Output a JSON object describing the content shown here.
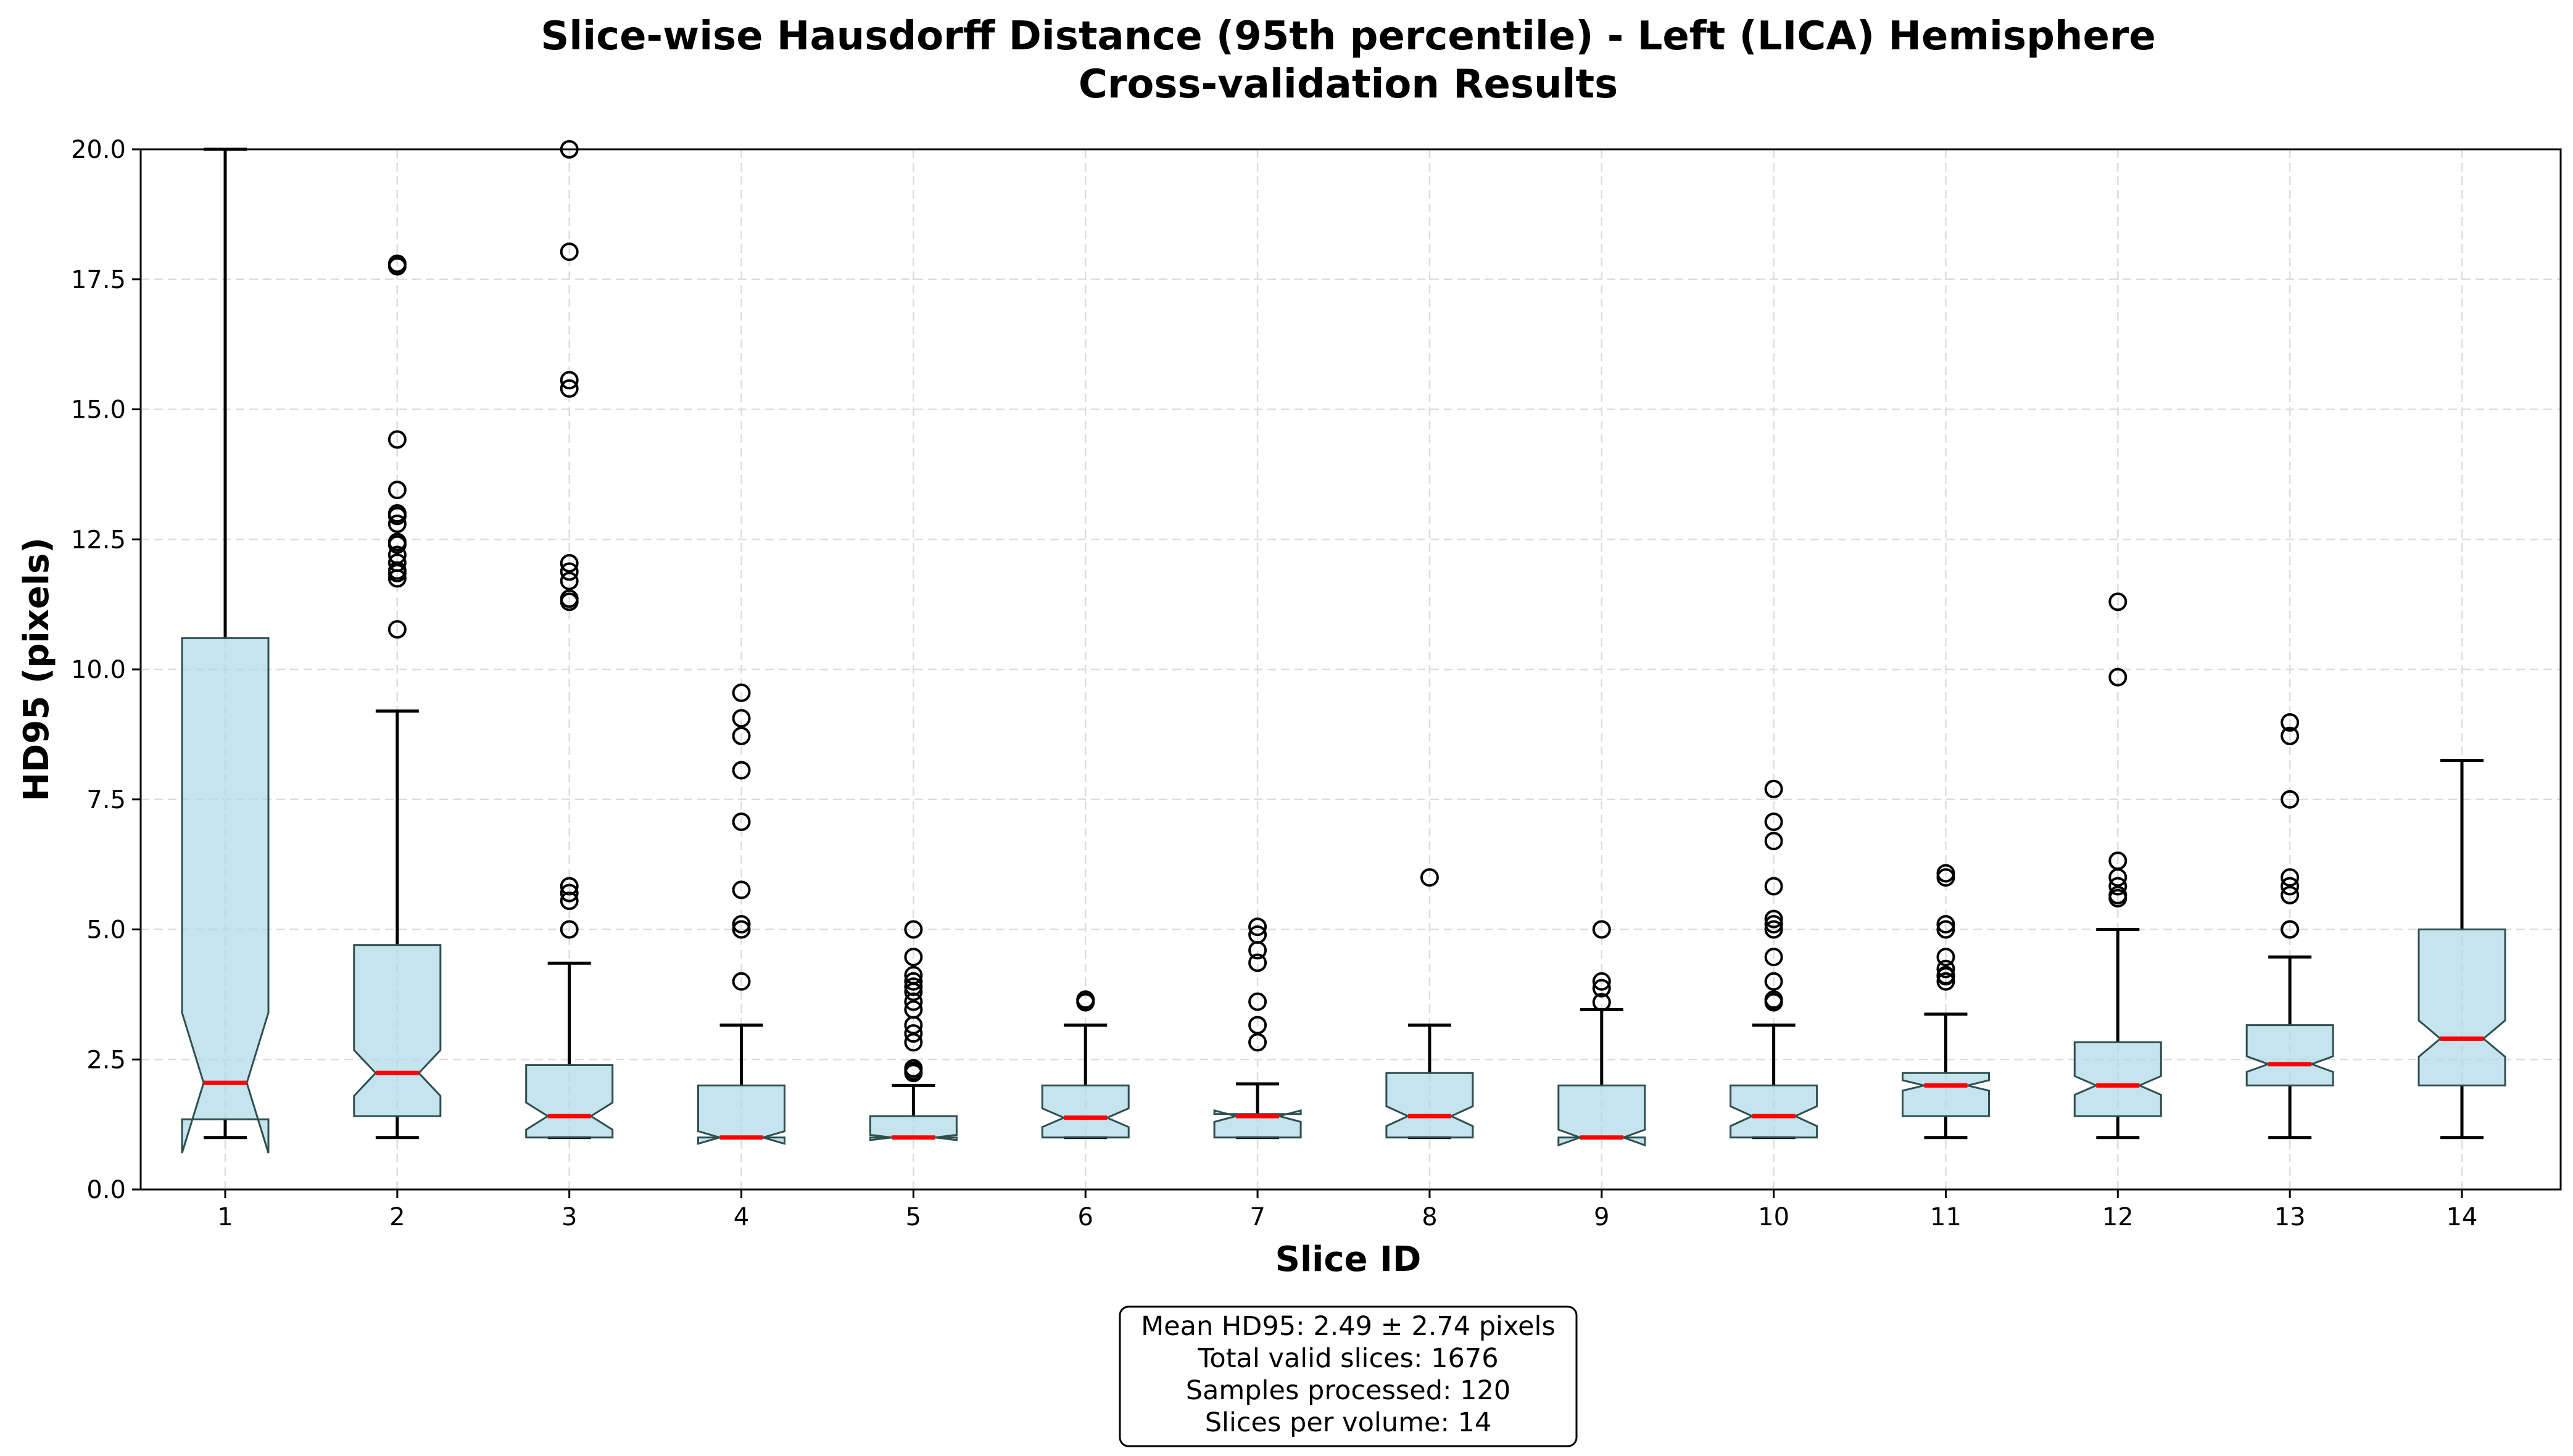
{
  "colors": {
    "box_fill": "#add8e6",
    "box_edge": "#2f4f4f",
    "median": "#ff0000",
    "whisker": "#000000",
    "grid": "#dddddd",
    "outlier_edge": "#000000"
  },
  "chart_data": {
    "type": "boxplot",
    "title": "Slice-wise Hausdorff Distance (95th percentile) - Left (LICA) Hemisphere",
    "subtitle": "Cross-validation Results",
    "xlabel": "Slice ID",
    "ylabel": "HD95 (pixels)",
    "ylim": [
      0,
      20
    ],
    "yticks": [
      "0.0",
      "2.5",
      "5.0",
      "7.5",
      "10.0",
      "12.5",
      "15.0",
      "17.5",
      "20.0"
    ],
    "grid": true,
    "notched": true,
    "categories": [
      "1",
      "2",
      "3",
      "4",
      "5",
      "6",
      "7",
      "8",
      "9",
      "10",
      "11",
      "12",
      "13",
      "14"
    ],
    "boxes": [
      {
        "slice": "1",
        "whisker_low": 1.0,
        "q1": 1.35,
        "median": 2.05,
        "notch_low": 0.7,
        "notch_high": 3.4,
        "q3": 10.6,
        "whisker_high": 20.0,
        "outliers": []
      },
      {
        "slice": "2",
        "whisker_low": 1.0,
        "q1": 1.41,
        "median": 2.24,
        "notch_low": 1.8,
        "notch_high": 2.68,
        "q3": 4.7,
        "whisker_high": 9.2,
        "outliers": [
          10.77,
          11.75,
          11.85,
          11.9,
          12.05,
          12.2,
          12.4,
          12.45,
          12.8,
          12.95,
          13.0,
          13.45,
          14.42,
          17.75,
          17.8
        ]
      },
      {
        "slice": "3",
        "whisker_low": 1.0,
        "q1": 1.0,
        "median": 1.41,
        "notch_low": 1.15,
        "notch_high": 1.67,
        "q3": 2.39,
        "whisker_high": 4.35,
        "outliers": [
          5.0,
          5.55,
          5.7,
          5.83,
          11.3,
          11.36,
          11.7,
          11.88,
          12.04,
          15.4,
          15.56,
          18.03,
          20.05
        ]
      },
      {
        "slice": "4",
        "whisker_low": 1.0,
        "q1": 1.0,
        "median": 1.0,
        "notch_low": 0.88,
        "notch_high": 1.12,
        "q3": 2.0,
        "whisker_high": 3.16,
        "outliers": [
          4.0,
          5.0,
          5.1,
          5.76,
          7.07,
          8.06,
          8.72,
          9.06,
          9.55
        ]
      },
      {
        "slice": "5",
        "whisker_low": 1.0,
        "q1": 1.0,
        "median": 1.0,
        "notch_low": 0.95,
        "notch_high": 1.05,
        "q3": 1.41,
        "whisker_high": 2.0,
        "outliers": [
          2.24,
          2.28,
          2.33,
          2.83,
          3.0,
          3.16,
          3.46,
          3.61,
          3.8,
          3.9,
          4.0,
          4.12,
          4.47,
          5.0
        ]
      },
      {
        "slice": "6",
        "whisker_low": 1.0,
        "q1": 1.0,
        "median": 1.38,
        "notch_low": 1.2,
        "notch_high": 1.56,
        "q3": 2.0,
        "whisker_high": 3.16,
        "outliers": [
          3.6,
          3.65
        ]
      },
      {
        "slice": "7",
        "whisker_low": 1.0,
        "q1": 1.0,
        "median": 1.41,
        "notch_low": 1.3,
        "notch_high": 1.52,
        "q3": 1.45,
        "whisker_high": 2.03,
        "outliers": [
          2.83,
          3.16,
          3.61,
          4.36,
          4.6,
          4.9,
          5.05
        ]
      },
      {
        "slice": "8",
        "whisker_low": 1.0,
        "q1": 1.0,
        "median": 1.41,
        "notch_low": 1.22,
        "notch_high": 1.6,
        "q3": 2.24,
        "whisker_high": 3.16,
        "outliers": [
          6.0
        ]
      },
      {
        "slice": "9",
        "whisker_low": 1.0,
        "q1": 1.0,
        "median": 1.0,
        "notch_low": 0.85,
        "notch_high": 1.15,
        "q3": 2.0,
        "whisker_high": 3.46,
        "outliers": [
          3.6,
          3.87,
          4.0,
          5.0
        ]
      },
      {
        "slice": "10",
        "whisker_low": 1.0,
        "q1": 1.0,
        "median": 1.41,
        "notch_low": 1.22,
        "notch_high": 1.6,
        "q3": 2.0,
        "whisker_high": 3.16,
        "outliers": [
          3.6,
          3.65,
          4.0,
          4.47,
          5.0,
          5.1,
          5.2,
          5.83,
          6.7,
          7.07,
          7.7
        ]
      },
      {
        "slice": "11",
        "whisker_low": 1.0,
        "q1": 1.41,
        "median": 2.0,
        "notch_low": 1.9,
        "notch_high": 2.1,
        "q3": 2.24,
        "whisker_high": 3.37,
        "outliers": [
          4.0,
          4.1,
          4.12,
          4.24,
          4.47,
          5.0,
          5.1,
          6.0,
          6.08
        ]
      },
      {
        "slice": "12",
        "whisker_low": 1.0,
        "q1": 1.41,
        "median": 2.0,
        "notch_low": 1.82,
        "notch_high": 2.18,
        "q3": 2.83,
        "whisker_high": 5.0,
        "outliers": [
          5.6,
          5.66,
          5.83,
          6.0,
          6.32,
          9.85,
          11.3
        ]
      },
      {
        "slice": "13",
        "whisker_low": 1.0,
        "q1": 2.0,
        "median": 2.41,
        "notch_low": 2.26,
        "notch_high": 2.56,
        "q3": 3.16,
        "whisker_high": 4.47,
        "outliers": [
          5.0,
          5.0,
          5.66,
          5.83,
          6.0,
          7.5,
          8.72,
          8.98
        ]
      },
      {
        "slice": "14",
        "whisker_low": 1.0,
        "q1": 2.0,
        "median": 2.9,
        "notch_low": 2.55,
        "notch_high": 3.25,
        "q3": 5.0,
        "whisker_high": 8.25,
        "outliers": []
      }
    ],
    "stats_box": {
      "placement": "bottom-center",
      "lines": [
        "Mean HD95: 2.49 ± 2.74 pixels",
        "Total valid slices: 1676",
        "Samples processed: 120",
        "Slices per volume: 14"
      ]
    }
  }
}
